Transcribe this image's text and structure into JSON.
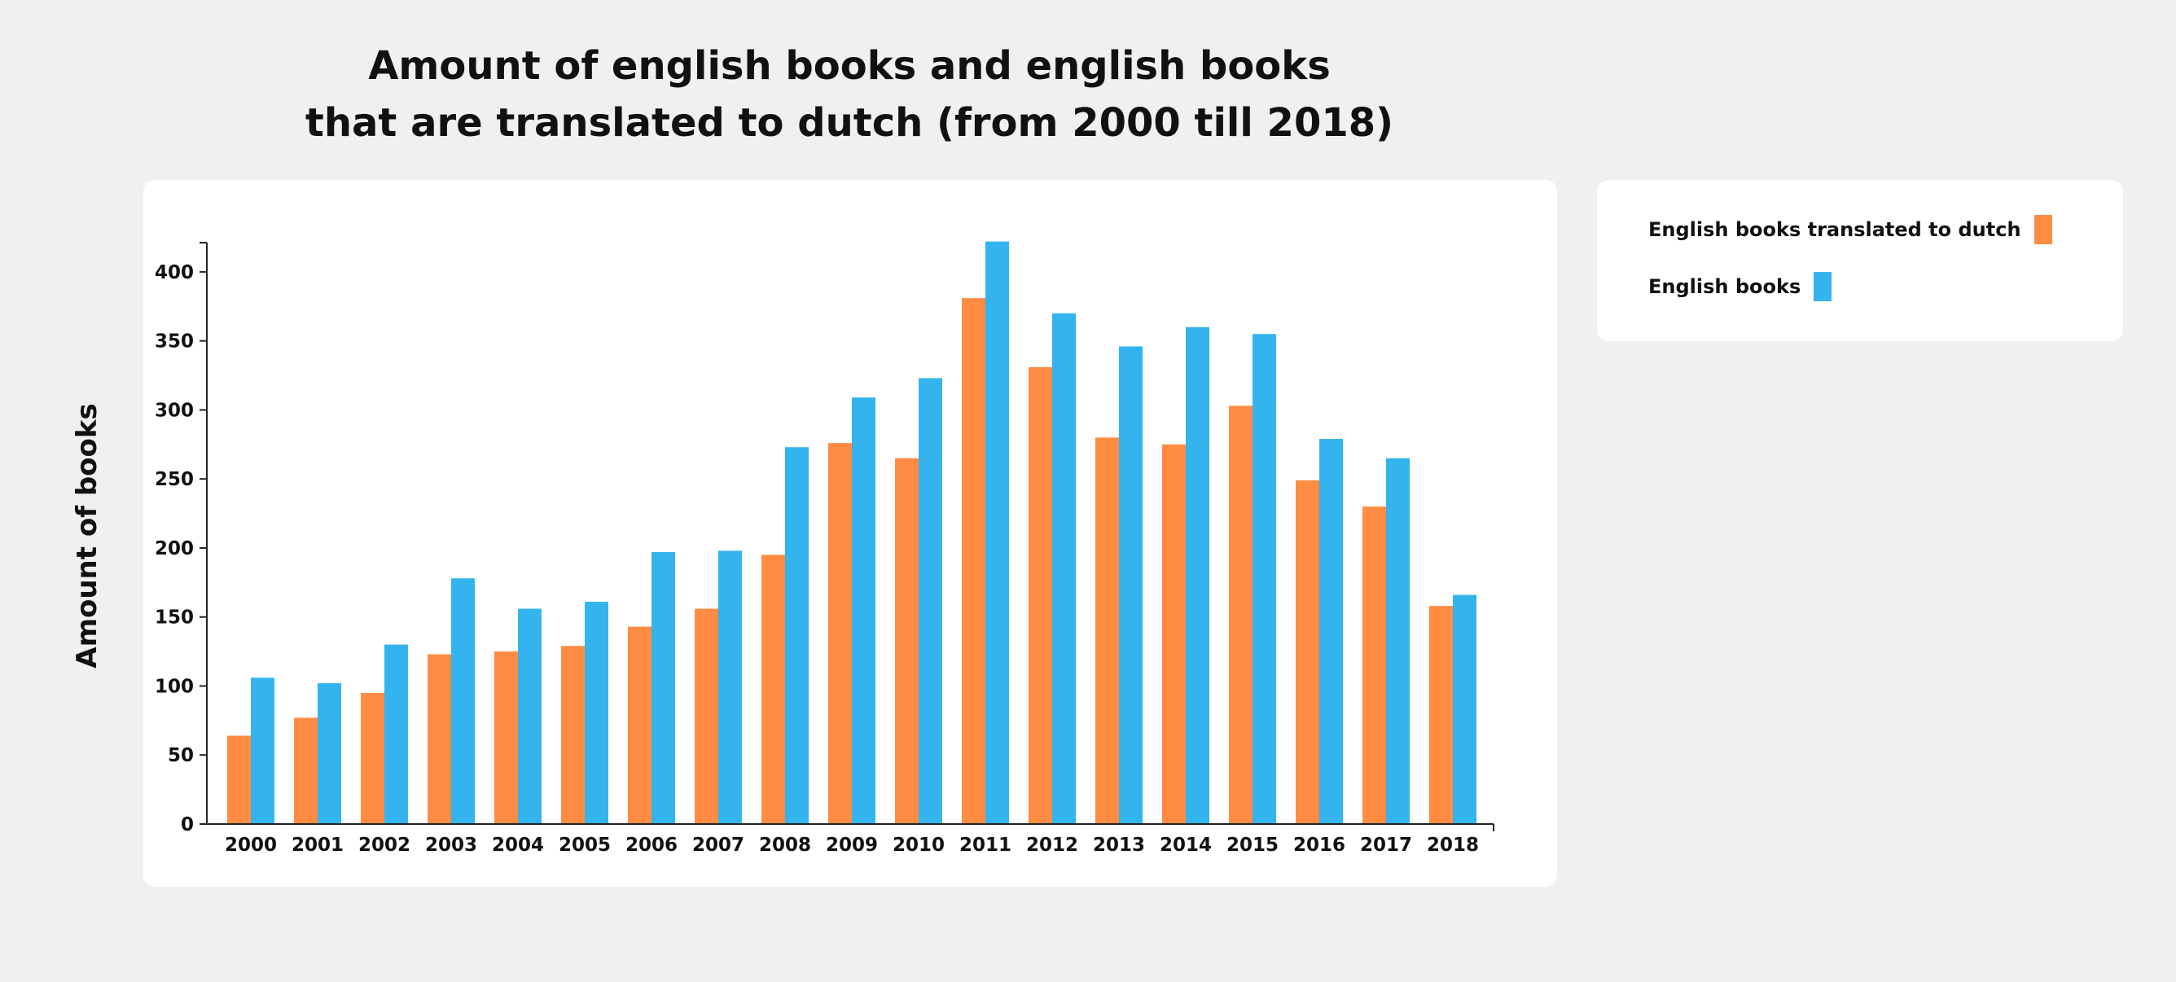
{
  "chart_data": {
    "type": "bar",
    "title_lines": [
      "Amount of english books and english books",
      "that are translated to dutch (from 2000 till 2018)"
    ],
    "ylabel": "Amount of books",
    "xlabel": "",
    "ylim": [
      0,
      420
    ],
    "yticks": [
      0,
      50,
      100,
      150,
      200,
      250,
      300,
      350,
      400
    ],
    "grid": false,
    "legend_position": "right",
    "categories": [
      "2000",
      "2001",
      "2002",
      "2003",
      "2004",
      "2005",
      "2006",
      "2007",
      "2008",
      "2009",
      "2010",
      "2011",
      "2012",
      "2013",
      "2014",
      "2015",
      "2016",
      "2017",
      "2018"
    ],
    "series": [
      {
        "name": "English books translated to dutch",
        "color": "#ff8c42",
        "values": [
          64,
          77,
          95,
          123,
          125,
          129,
          143,
          156,
          195,
          276,
          265,
          381,
          331,
          280,
          275,
          303,
          249,
          230,
          158
        ]
      },
      {
        "name": "English books",
        "color": "#34b4ee",
        "values": [
          106,
          102,
          130,
          178,
          156,
          161,
          197,
          198,
          273,
          309,
          323,
          422,
          370,
          346,
          360,
          355,
          279,
          265,
          166
        ]
      }
    ]
  }
}
